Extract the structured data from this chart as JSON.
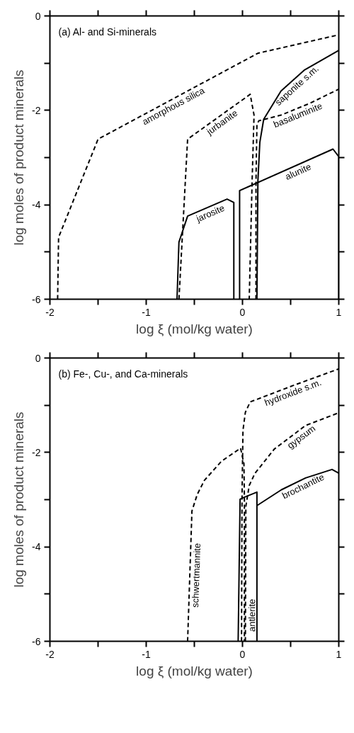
{
  "chart_data": [
    {
      "type": "line",
      "title": "(a) Al- and Si-minerals",
      "xlabel": "log ξ (mol/kg water)",
      "ylabel": "log moles of product minerals",
      "xlim": [
        -2,
        1
      ],
      "ylim": [
        -6,
        0
      ],
      "xticks": [
        -2,
        {
          "value": -1.5,
          "label": null
        },
        -1,
        {
          "value": -0.5,
          "label": null
        },
        0,
        {
          "value": 0.5,
          "label": null
        },
        1
      ],
      "yticks": [
        -6,
        {
          "value": -5,
          "label": null
        },
        -4,
        {
          "value": -3,
          "label": null
        },
        -2,
        {
          "value": -1,
          "label": null
        },
        0
      ],
      "grid": false,
      "series": [
        {
          "color": "#000000",
          "line_style": "dashed",
          "x": [
            -1.92,
            -1.91,
            -1.5,
            0.16,
            1
          ],
          "values": [
            -6,
            -4.69,
            -2.61,
            -0.79,
            -0.4
          ]
        },
        {
          "color": "#000000",
          "line_style": "dashed",
          "x": [
            -0.66,
            -0.57,
            0.08,
            0.12,
            0.1,
            0.07
          ],
          "values": [
            -6,
            -2.61,
            -1.66,
            -2.1,
            -3.5,
            -6
          ]
        },
        {
          "color": "#000000",
          "line_style": "dashed",
          "x": [
            0.14,
            0.14,
            0.15,
            0.17,
            0.4,
            0.7,
            1
          ],
          "values": [
            -6,
            -3.5,
            -2.3,
            -2.22,
            -2.1,
            -1.85,
            -1.55
          ]
        },
        {
          "color": "#000000",
          "line_style": "solid",
          "x": [
            0.15,
            0.16,
            0.18,
            0.22,
            0.4,
            0.64,
            1
          ],
          "values": [
            -6,
            -3.5,
            -2.68,
            -2.19,
            -1.59,
            -1.15,
            -0.73
          ]
        },
        {
          "color": "#000000",
          "line_style": "solid",
          "x": [
            -0.03,
            -0.03,
            0.08,
            0.94,
            1,
            1
          ],
          "values": [
            -6,
            -3.7,
            -3.6,
            -2.82,
            -2.98,
            -6
          ]
        },
        {
          "color": "#000000",
          "line_style": "solid",
          "x": [
            -0.68,
            -0.66,
            -0.57,
            -0.16,
            -0.09,
            -0.09
          ],
          "values": [
            -6,
            -4.79,
            -4.24,
            -3.88,
            -3.95,
            -6
          ]
        }
      ],
      "annotations": [
        {
          "text": "amorphous silica",
          "x": -0.75,
          "y": -1.79
        },
        {
          "text": "jurbanite",
          "x": -0.25,
          "y": -2.14
        },
        {
          "text": "saponite s.m.",
          "x": 0.52,
          "y": -1.37
        },
        {
          "text": "basaluminite",
          "x": 0.55,
          "y": -1.975
        },
        {
          "text": "alunite",
          "x": 0.55,
          "y": -3.174
        },
        {
          "text": "jarosite",
          "x": -0.36,
          "y": -4.056
        }
      ]
    },
    {
      "type": "line",
      "title": "(b) Fe-, Cu-, and Ca-minerals",
      "xlabel": "log ξ (mol/kg water)",
      "ylabel": "log moles of product minerals",
      "xlim": [
        -2,
        1
      ],
      "ylim": [
        -6,
        0
      ],
      "xticks": [
        -2,
        {
          "value": -1.5,
          "label": null
        },
        -1,
        {
          "value": -0.5,
          "label": null
        },
        0,
        {
          "value": 0.5,
          "label": null
        },
        1
      ],
      "yticks": [
        -6,
        {
          "value": -5,
          "label": null
        },
        -4,
        {
          "value": -3,
          "label": null
        },
        -2,
        {
          "value": -1,
          "label": null
        },
        0
      ],
      "grid": false,
      "series": [
        {
          "color": "#000000",
          "line_style": "dashed",
          "x": [
            -0.01,
            -0.005,
            0.005,
            0.03,
            0.08,
            0.53,
            1
          ],
          "values": [
            -6,
            -3,
            -1.53,
            -1.15,
            -0.93,
            -0.58,
            -0.23
          ]
        },
        {
          "color": "#000000",
          "line_style": "dashed",
          "x": [
            0.03,
            0.035,
            0.07,
            0.13,
            0.33,
            0.655,
            1
          ],
          "values": [
            -6,
            -3.14,
            -2.7,
            -2.44,
            -1.93,
            -1.43,
            -1.16
          ]
        },
        {
          "color": "#000000",
          "line_style": "dashed",
          "x": [
            -0.57,
            -0.525,
            -0.47,
            -0.395,
            -0.22,
            -0.02,
            0.015,
            0.02,
            0.02
          ],
          "values": [
            -6,
            -3.24,
            -2.89,
            -2.59,
            -2.19,
            -1.91,
            -2.24,
            -3,
            -6
          ]
        },
        {
          "color": "#000000",
          "line_style": "solid",
          "x": [
            -0.045,
            -0.025,
            0.005,
            0.15,
            0.15
          ],
          "values": [
            -6,
            -2.99,
            -2.96,
            -2.84,
            -6
          ]
        },
        {
          "color": "#000000",
          "line_style": "solid",
          "x": [
            0.155,
            0.405,
            0.655,
            0.93,
            1
          ],
          "values": [
            -3.12,
            -2.79,
            -2.54,
            -2.36,
            -2.44
          ]
        }
      ],
      "annotations": [
        {
          "text": "hydroxide s.m.",
          "x": 0.5,
          "y": -0.603
        },
        {
          "text": "gypsum",
          "x": 0.57,
          "y": -1.561
        },
        {
          "text": "brochantite",
          "x": 0.6,
          "y": -2.595
        },
        {
          "text": "schwertmannite",
          "x": -0.547,
          "y": -4.6
        },
        {
          "text": "antlerite",
          "x": 0.031,
          "y": -5.45
        }
      ]
    }
  ]
}
